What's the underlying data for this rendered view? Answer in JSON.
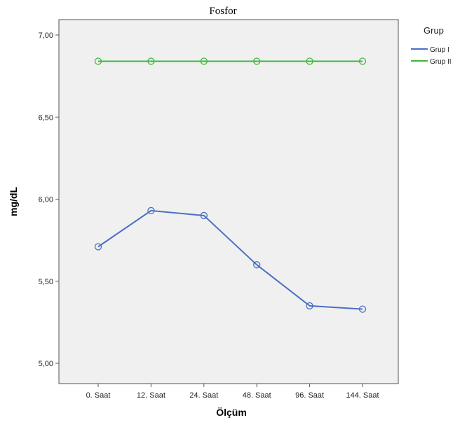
{
  "chart_data": {
    "type": "line",
    "title": "Fosfor",
    "xlabel": "Ölçüm",
    "ylabel": "mg/dL",
    "categories": [
      "0. Saat",
      "12. Saat",
      "24. Saat",
      "48. Saat",
      "96. Saat",
      "144. Saat"
    ],
    "ylim": [
      5.0,
      7.0
    ],
    "yticks": [
      "5,00",
      "5,50",
      "6,00",
      "6,50",
      "7,00"
    ],
    "legend_title": "Grup",
    "legend_position": "top-right outside",
    "grid": false,
    "background": "#f0f0f0",
    "series": [
      {
        "name": "Grup I",
        "color": "#4a6fc4",
        "values": [
          5.71,
          5.93,
          5.9,
          5.6,
          5.35,
          5.33
        ]
      },
      {
        "name": "Grup II",
        "color": "#3cb83c",
        "values": [
          6.84,
          6.84,
          6.84,
          6.84,
          6.84,
          6.84
        ]
      }
    ]
  }
}
